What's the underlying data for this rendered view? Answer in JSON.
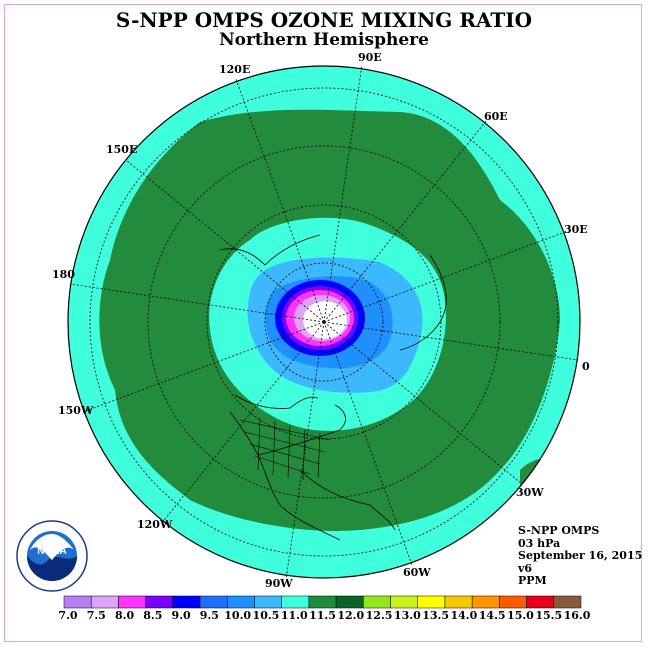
{
  "title": "S-NPP OMPS OZONE MIXING RATIO",
  "subtitle": "Northern Hemisphere",
  "longitude_labels": [
    "90E",
    "60E",
    "30E",
    "0",
    "30W",
    "60W",
    "90W",
    "120W",
    "150W",
    "180",
    "150E",
    "120E"
  ],
  "info": {
    "instrument": "S-NPP OMPS",
    "level": "03 hPa",
    "date": "September 16, 2015",
    "version": "v6",
    "units": "PPM"
  },
  "logo": {
    "name": "noaa-logo",
    "text": "NOAA"
  },
  "colorbar": {
    "ticks": [
      "7.0",
      "7.5",
      "8.0",
      "8.5",
      "9.0",
      "9.5",
      "10.0",
      "10.5",
      "11.0",
      "11.5",
      "12.0",
      "12.5",
      "13.0",
      "13.5",
      "14.0",
      "14.5",
      "15.0",
      "15.5",
      "16.0"
    ],
    "colors": [
      "#b57ff0",
      "#dfa3f5",
      "#ff33ff",
      "#7a00ff",
      "#0000ff",
      "#1e6fff",
      "#1e90ff",
      "#3cb8ff",
      "#40ffdd",
      "#1e8c3a",
      "#0a6428",
      "#96e61e",
      "#c8f51e",
      "#ffff00",
      "#f5c800",
      "#ff9600",
      "#ff5a00",
      "#e6001e",
      "#8b5a3c"
    ]
  },
  "colors": {
    "outer_band": "#40ffdd",
    "green_band": "#228b3c",
    "light_blue": "#3cb8ff",
    "mid_blue": "#1e90ff",
    "deep_blue": "#0000ff",
    "magenta": "#ff33ff",
    "lavender": "#dfa3f5"
  }
}
